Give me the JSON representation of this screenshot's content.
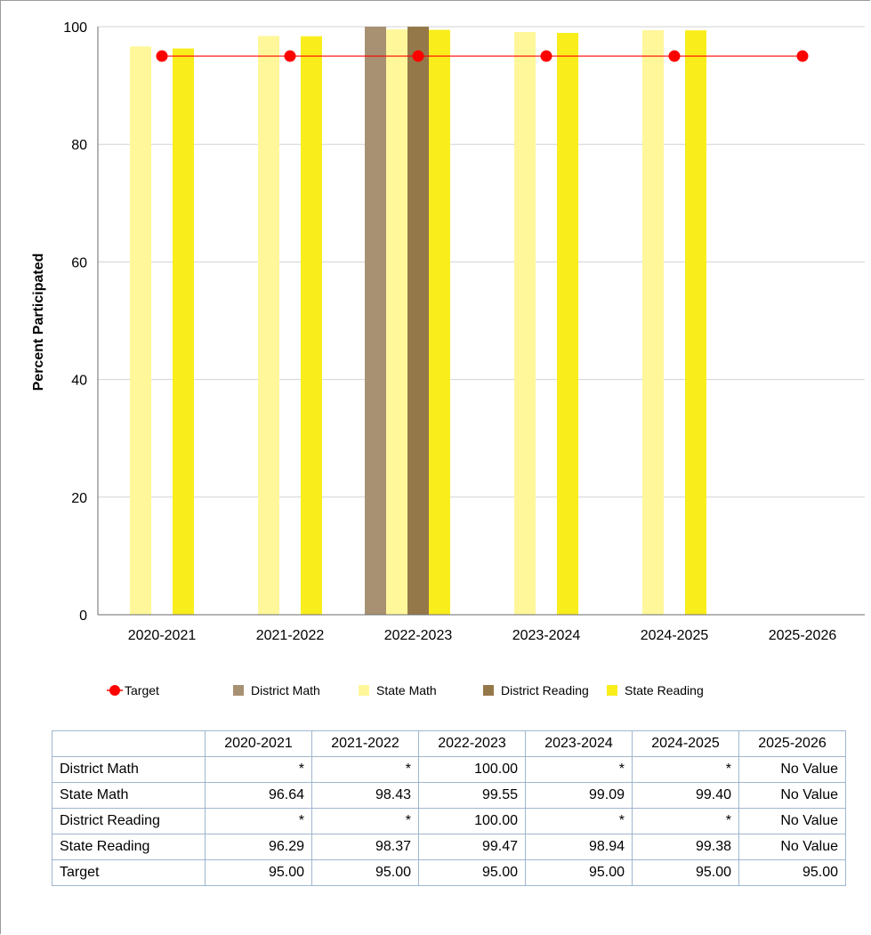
{
  "chart_data": {
    "type": "bar",
    "ylabel": "Percent Participated",
    "xlabel": "",
    "ylim": [
      0,
      100
    ],
    "yticks": [
      0,
      20,
      40,
      60,
      80,
      100
    ],
    "grid": true,
    "legend_position": "bottom",
    "categories": [
      "2020-2021",
      "2021-2022",
      "2022-2023",
      "2023-2024",
      "2024-2025",
      "2025-2026"
    ],
    "series": [
      {
        "name": "District Math",
        "type": "bar",
        "color": "#a89172",
        "values": [
          null,
          null,
          100.0,
          null,
          null,
          null
        ]
      },
      {
        "name": "State Math",
        "type": "bar",
        "color": "#fff79a",
        "values": [
          96.64,
          98.43,
          99.55,
          99.09,
          99.4,
          null
        ]
      },
      {
        "name": "District Reading",
        "type": "bar",
        "color": "#95784a",
        "values": [
          null,
          null,
          100.0,
          null,
          null,
          null
        ]
      },
      {
        "name": "State Reading",
        "type": "bar",
        "color": "#f9ee1c",
        "values": [
          96.29,
          98.37,
          99.47,
          98.94,
          99.38,
          null
        ]
      },
      {
        "name": "Target",
        "type": "line",
        "color": "#ff0000",
        "values": [
          95.0,
          95.0,
          95.0,
          95.0,
          95.0,
          95.0
        ]
      }
    ],
    "legend_order": [
      "Target",
      "District Math",
      "State Math",
      "District Reading",
      "State Reading"
    ]
  },
  "table": {
    "columns": [
      "2020-2021",
      "2021-2022",
      "2022-2023",
      "2023-2024",
      "2024-2025",
      "2025-2026"
    ],
    "rows": [
      {
        "label": "District Math",
        "cells": [
          "*",
          "*",
          "100.00",
          "*",
          "*",
          "No Value"
        ]
      },
      {
        "label": "State Math",
        "cells": [
          "96.64",
          "98.43",
          "99.55",
          "99.09",
          "99.40",
          "No Value"
        ]
      },
      {
        "label": "District Reading",
        "cells": [
          "*",
          "*",
          "100.00",
          "*",
          "*",
          "No Value"
        ]
      },
      {
        "label": "State Reading",
        "cells": [
          "96.29",
          "98.37",
          "99.47",
          "98.94",
          "99.38",
          "No Value"
        ]
      },
      {
        "label": "Target",
        "cells": [
          "95.00",
          "95.00",
          "95.00",
          "95.00",
          "95.00",
          "95.00"
        ]
      }
    ]
  }
}
